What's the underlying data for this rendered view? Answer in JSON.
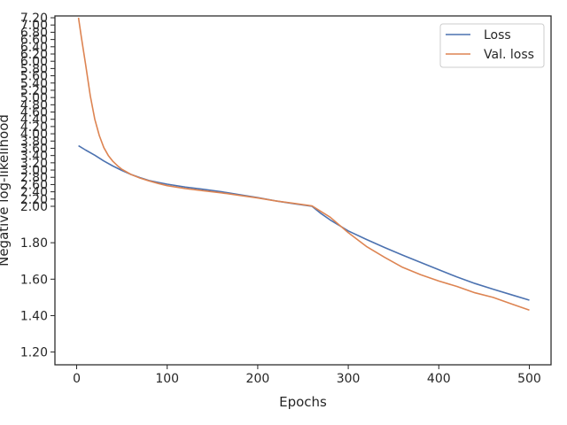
{
  "chart_data": {
    "type": "line",
    "title": "",
    "xlabel": "Epochs",
    "ylabel": "Negative log-likelihood",
    "xlim": [
      -24,
      524
    ],
    "ylim": [
      1.13,
      7.25
    ],
    "yscale": "piecewise-linear (compressed above 2.00)",
    "x_ticks": [
      0,
      100,
      200,
      300,
      400,
      500
    ],
    "x_tick_labels": [
      "0",
      "100",
      "200",
      "300",
      "400",
      "500"
    ],
    "y_ticks": [
      1.2,
      1.4,
      1.6,
      1.8,
      2.0,
      2.2,
      2.4,
      2.6,
      2.8,
      3.0,
      3.2,
      3.4,
      3.6,
      3.8,
      4.0,
      4.2,
      4.4,
      4.6,
      4.8,
      5.0,
      5.2,
      5.4,
      5.6,
      5.8,
      6.0,
      6.2,
      6.4,
      6.6,
      6.8,
      7.0,
      7.2
    ],
    "y_tick_labels": [
      "1.20",
      "1.40",
      "1.60",
      "1.80",
      "2.00",
      "2.20",
      "2.40",
      "2.60",
      "2.80",
      "3.00",
      "3.20",
      "3.40",
      "3.60",
      "3.80",
      "4.00",
      "4.20",
      "4.40",
      "4.60",
      "4.80",
      "5.00",
      "5.20",
      "5.40",
      "5.60",
      "5.80",
      "6.00",
      "6.20",
      "6.40",
      "6.60",
      "6.80",
      "7.00",
      "7.20"
    ],
    "grid": false,
    "legend_position": "top-right",
    "series": [
      {
        "name": "Loss",
        "color": "#4c72b0",
        "x": [
          2,
          10,
          20,
          30,
          40,
          50,
          60,
          70,
          80,
          90,
          100,
          120,
          140,
          160,
          180,
          200,
          220,
          240,
          260,
          270,
          280,
          290,
          300,
          320,
          340,
          360,
          380,
          400,
          420,
          440,
          460,
          480,
          500
        ],
        "values": [
          3.67,
          3.55,
          3.41,
          3.25,
          3.11,
          2.99,
          2.88,
          2.79,
          2.71,
          2.66,
          2.61,
          2.53,
          2.47,
          2.4,
          2.32,
          2.24,
          2.15,
          2.07,
          2.0,
          1.96,
          1.925,
          1.895,
          1.865,
          1.818,
          1.774,
          1.732,
          1.692,
          1.652,
          1.612,
          1.576,
          1.545,
          1.515,
          1.485
        ]
      },
      {
        "name": "Val. loss",
        "color": "#dd8452",
        "x": [
          2,
          5,
          10,
          15,
          20,
          25,
          30,
          35,
          40,
          45,
          50,
          60,
          70,
          80,
          90,
          100,
          120,
          140,
          160,
          180,
          200,
          220,
          240,
          260,
          280,
          300,
          320,
          340,
          360,
          380,
          400,
          420,
          440,
          460,
          480,
          500
        ],
        "values": [
          7.2,
          6.7,
          5.9,
          5.05,
          4.4,
          3.95,
          3.62,
          3.4,
          3.24,
          3.12,
          3.02,
          2.88,
          2.78,
          2.7,
          2.63,
          2.57,
          2.49,
          2.43,
          2.37,
          2.3,
          2.23,
          2.15,
          2.08,
          2.01,
          1.94,
          1.855,
          1.78,
          1.72,
          1.665,
          1.625,
          1.59,
          1.56,
          1.525,
          1.5,
          1.465,
          1.43
        ]
      }
    ]
  }
}
